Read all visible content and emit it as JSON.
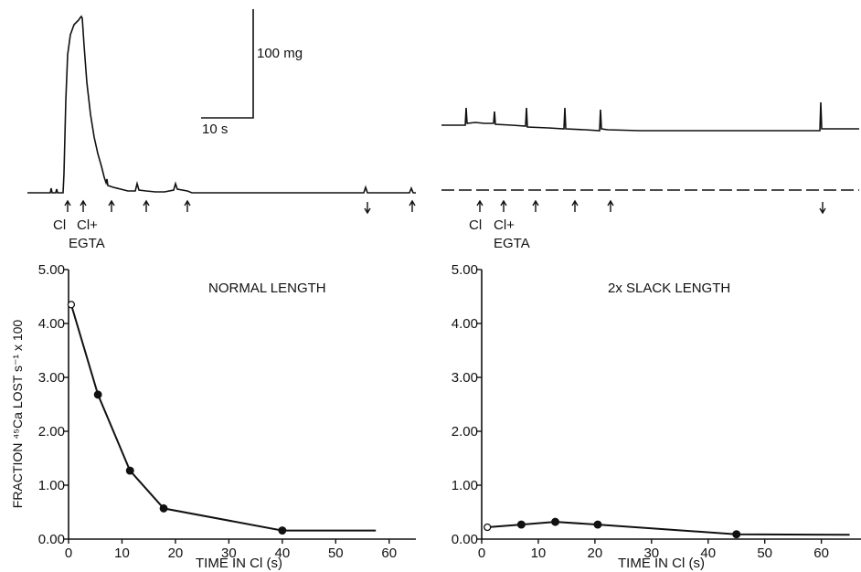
{
  "figure": {
    "scale_bar": {
      "force_label": "100 mg",
      "time_label": "10 s"
    },
    "stim_labels": {
      "cl": "Cl",
      "cl_plus": "Cl+",
      "egta": "EGTA"
    }
  },
  "chart_data": [
    {
      "type": "line",
      "title": "NORMAL LENGTH",
      "xlabel": "TIME IN Cl (s)",
      "ylabel": "FRACTION ⁴⁵Ca LOST s⁻¹ x 100",
      "xlim": [
        0,
        65
      ],
      "ylim": [
        0,
        5
      ],
      "xticks": [
        0,
        10,
        20,
        30,
        40,
        50,
        60
      ],
      "yticks": [
        "0.00",
        "1.00",
        "2.00",
        "3.00",
        "4.00",
        "5.00"
      ],
      "series": [
        {
          "x": [
            0.5,
            5.5,
            11.5,
            17.8,
            40,
            57.5
          ],
          "y": [
            4.35,
            2.68,
            1.27,
            0.57,
            0.16,
            0.16
          ],
          "markers": [
            "open",
            "filled",
            "filled",
            "filled",
            "filled",
            "none"
          ]
        }
      ]
    },
    {
      "type": "line",
      "title": "2x SLACK LENGTH",
      "xlabel": "TIME IN Cl (s)",
      "ylabel": "",
      "xlim": [
        0,
        67
      ],
      "ylim": [
        0,
        5
      ],
      "xticks": [
        0,
        10,
        20,
        30,
        40,
        50,
        60
      ],
      "yticks": [
        "0.00",
        "1.00",
        "2.00",
        "3.00",
        "4.00",
        "5.00"
      ],
      "series": [
        {
          "x": [
            1,
            7,
            13,
            20.5,
            45,
            65
          ],
          "y": [
            0.22,
            0.27,
            0.32,
            0.27,
            0.09,
            0.08
          ],
          "markers": [
            "open",
            "filled",
            "filled",
            "filled",
            "filled",
            "none"
          ]
        }
      ]
    }
  ]
}
